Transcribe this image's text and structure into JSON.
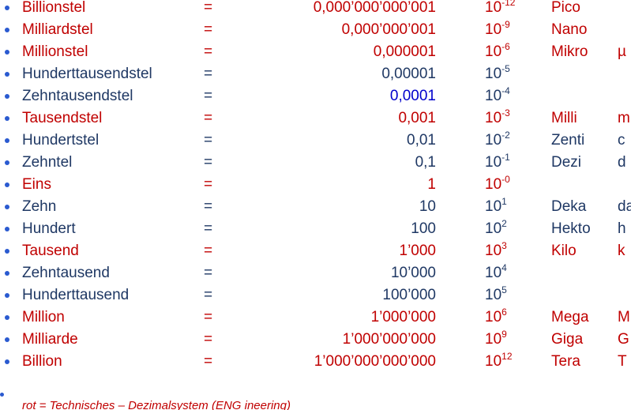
{
  "rows": [
    {
      "name": "Billionstel",
      "eq": "=",
      "decimal": "0,000’000’000’001",
      "base": "10",
      "exp": "-12",
      "prefix": "Pico",
      "color": "#c00000"
    },
    {
      "name": "Milliardstel",
      "eq": "=",
      "decimal": "0,000’000’001",
      "base": "10",
      "exp": "-9",
      "prefix": "Nano",
      "color": "#c00000"
    },
    {
      "name": "Millionstel",
      "eq": "=",
      "decimal": "0,000001",
      "base": "10",
      "exp": "-6",
      "prefix": "Mikro",
      "symbol": "µ",
      "color": "#c00000"
    },
    {
      "name": "Hunderttausendstel",
      "eq": "=",
      "decimal": "0,00001",
      "base": "10",
      "exp": "-5",
      "color": "#1f3864"
    },
    {
      "name": "Zehntausendstel",
      "eq": "=",
      "decimal": "0,0001",
      "base": "10",
      "exp": "-4",
      "color": "#1f3864",
      "decimal_color": "#0000cc"
    },
    {
      "name": "Tausendstel",
      "eq": "=",
      "decimal": "0,001",
      "base": "10",
      "exp": "-3",
      "prefix": "Milli",
      "symbol": "m",
      "color": "#c00000"
    },
    {
      "name": "Hundertstel",
      "eq": "=",
      "decimal": "0,01",
      "base": "10",
      "exp": "-2",
      "prefix": "Zenti",
      "symbol": "c",
      "color": "#1f3864"
    },
    {
      "name": "Zehntel",
      "eq": "=",
      "decimal": "0,1",
      "base": "10",
      "exp": "-1",
      "prefix": "Dezi",
      "symbol": "d",
      "color": "#1f3864"
    },
    {
      "name": "Eins",
      "eq": "=",
      "decimal": "1",
      "base": "10",
      "exp": "-0",
      "color": "#c00000"
    },
    {
      "name": "Zehn",
      "eq": "=",
      "decimal": "10",
      "base": "10",
      "exp": "1",
      "prefix": "Deka",
      "symbol": "da",
      "color": "#1f3864"
    },
    {
      "name": "Hundert",
      "eq": "=",
      "decimal": "100",
      "base": "10",
      "exp": "2",
      "prefix": "Hekto",
      "symbol": "h",
      "color": "#1f3864"
    },
    {
      "name": "Tausend",
      "eq": "=",
      "decimal": "1’000",
      "base": "10",
      "exp": "3",
      "prefix": "Kilo",
      "symbol": "k",
      "color": "#c00000"
    },
    {
      "name": "Zehntausend",
      "eq": "=",
      "decimal": "10’000",
      "base": "10",
      "exp": "4",
      "color": "#1f3864"
    },
    {
      "name": "Hunderttausend",
      "eq": "=",
      "decimal": "100’000",
      "base": "10",
      "exp": "5",
      "color": "#1f3864"
    },
    {
      "name": "Million",
      "eq": "=",
      "decimal": "1’000’000",
      "base": "10",
      "exp": "6",
      "prefix": "Mega",
      "symbol": "M",
      "color": "#c00000"
    },
    {
      "name": "Milliarde",
      "eq": "=",
      "decimal": "1’000’000’000",
      "base": "10",
      "exp": "9",
      "prefix": "Giga",
      "symbol": "G",
      "color": "#c00000"
    },
    {
      "name": "Billion",
      "eq": "=",
      "decimal": "1’000’000’000’000",
      "base": "10",
      "exp": "12",
      "prefix": "Tera",
      "symbol": "T",
      "color": "#c00000"
    }
  ],
  "footnote": {
    "text": "rot = Technisches – Dezimalsystem (ENG ineering)",
    "color": "#c00000"
  }
}
